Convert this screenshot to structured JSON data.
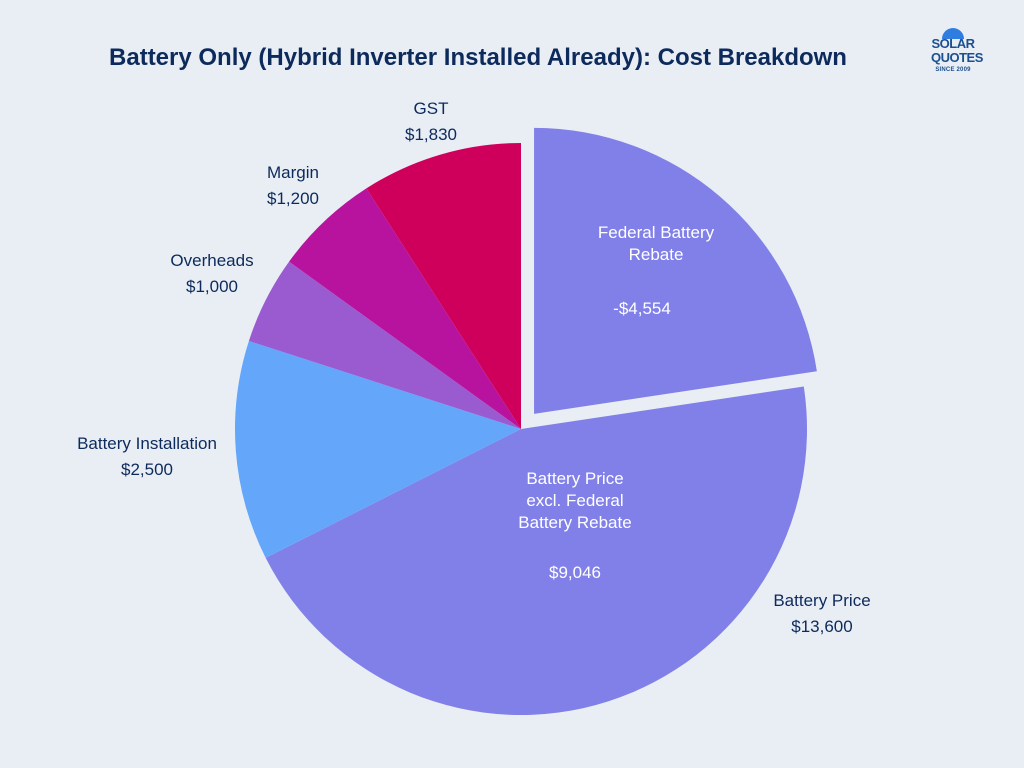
{
  "chart_data": {
    "type": "pie",
    "title": "Battery Only (Hybrid Inverter Installed Already): Cost Breakdown",
    "slices": [
      {
        "label": "Federal Battery Rebate",
        "value_text": "-$4,554",
        "value": 4554,
        "color": "#8080e8",
        "exploded": true
      },
      {
        "label": "Battery Price excl. Federal Battery Rebate",
        "value_text": "$9,046",
        "value": 9046,
        "color": "#8080e8",
        "exploded": false
      },
      {
        "label": "Battery Installation",
        "value_text": "$2,500",
        "value": 2500,
        "color": "#64a6fa",
        "exploded": false
      },
      {
        "label": "Overheads",
        "value_text": "$1,000",
        "value": 1000,
        "color": "#9b5bd0",
        "exploded": false
      },
      {
        "label": "Margin",
        "value_text": "$1,200",
        "value": 1200,
        "color": "#b7139e",
        "exploded": false
      },
      {
        "label": "GST",
        "value_text": "$1,830",
        "value": 1830,
        "color": "#cf005c",
        "exploded": false
      }
    ],
    "group_annotation": {
      "label": "Battery Price",
      "value_text": "$13,600"
    },
    "inner_labels": {
      "rebate": {
        "lines": [
          "Federal Battery",
          "Rebate"
        ],
        "value": "-$4,554"
      },
      "excl": {
        "lines": [
          "Battery Price",
          "excl. Federal",
          "Battery Rebate"
        ],
        "value": "$9,046"
      }
    },
    "outer_labels": {
      "gst": {
        "name": "GST",
        "value": "$1,830"
      },
      "margin": {
        "name": "Margin",
        "value": "$1,200"
      },
      "overheads": {
        "name": "Overheads",
        "value": "$1,000"
      },
      "installation": {
        "name": "Battery Installation",
        "value": "$2,500"
      },
      "battery_price": {
        "name": "Battery Price",
        "value": "$13,600"
      }
    },
    "legend": "none"
  },
  "logo": {
    "line1": "SOLAR",
    "line2": "QUOTES",
    "line3": "SINCE 2009"
  }
}
